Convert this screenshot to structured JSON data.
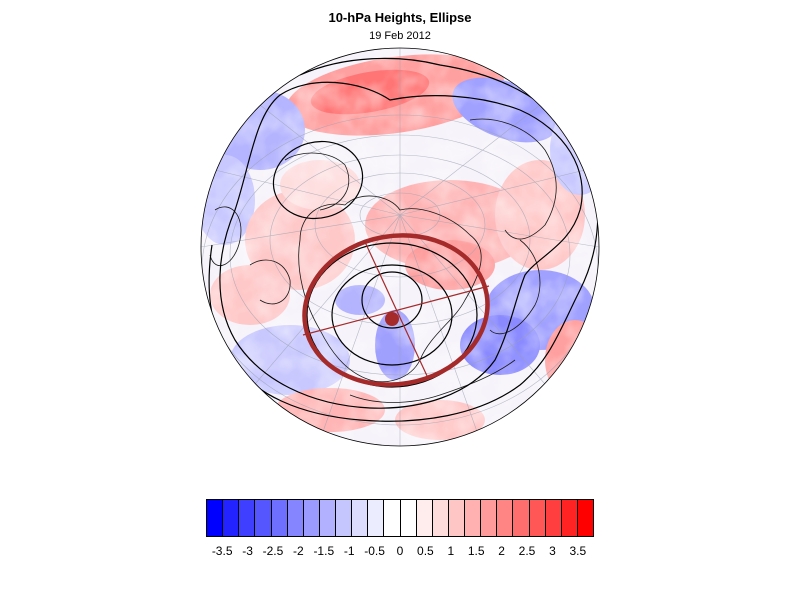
{
  "header": {
    "title": "10-hPa Heights, Ellipse",
    "date": "19 Feb 2012"
  },
  "map": {
    "projection": "orthographic",
    "hemisphere": "northern",
    "field": "10-hPa height anomaly",
    "ellipse_color": "#a52a2a",
    "contour_color": "#000000",
    "coastline_color": "#1a1a1a"
  },
  "colorbar": {
    "colors": [
      "#0000ff",
      "#2323ff",
      "#3f3fff",
      "#5656ff",
      "#6e6eff",
      "#8585ff",
      "#9b9bff",
      "#b1b1ff",
      "#c6c6ff",
      "#dcdcff",
      "#ececff",
      "#ffffff",
      "#ffffff",
      "#ffecec",
      "#ffdcdc",
      "#ffc6c6",
      "#ffb1b1",
      "#ff9b9b",
      "#ff8585",
      "#ff6e6e",
      "#ff5656",
      "#ff3f3f",
      "#ff2323",
      "#ff0000"
    ],
    "labels": [
      "-3.5",
      "-3",
      "-2.5",
      "-2",
      "-1.5",
      "-1",
      "-0.5",
      "0",
      "0.5",
      "1",
      "1.5",
      "2",
      "2.5",
      "3",
      "3.5"
    ]
  }
}
